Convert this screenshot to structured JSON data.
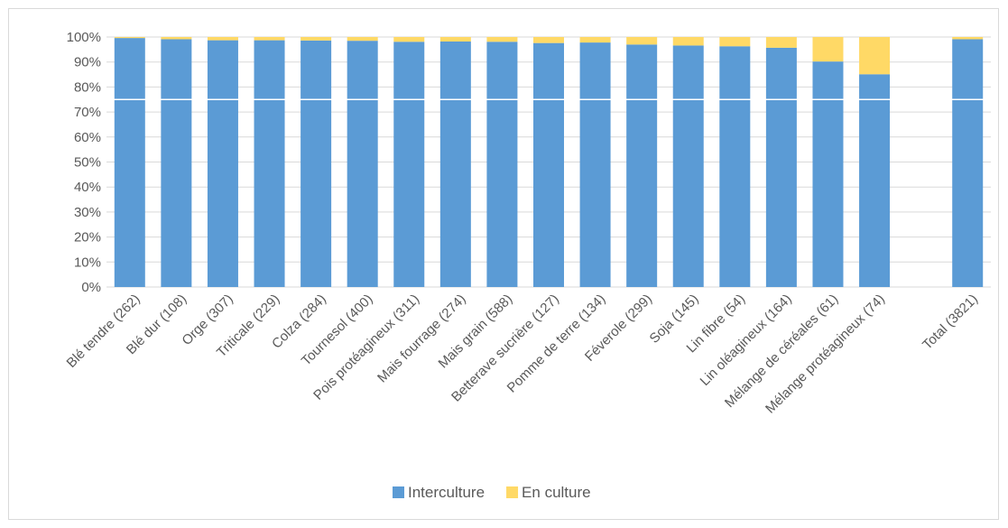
{
  "chart_data": {
    "type": "bar",
    "stacked": true,
    "percent": true,
    "title": "",
    "xlabel": "",
    "ylabel": "",
    "ylim": [
      0,
      100
    ],
    "y_ticks": [
      "0%",
      "10%",
      "20%",
      "30%",
      "40%",
      "50%",
      "60%",
      "70%",
      "80%",
      "90%",
      "100%"
    ],
    "grid": true,
    "legend_position": "bottom",
    "categories": [
      "Blé tendre (262)",
      "Blé dur (108)",
      "Orge (307)",
      "Triticale (229)",
      "Colza (284)",
      "Tournesol (400)",
      "Pois protéagineux (311)",
      "Mais fourrage (274)",
      "Mais grain (588)",
      "Betterave sucrière (127)",
      "Pomme de terre (134)",
      "Féverole (299)",
      "Soja (145)",
      "Lin fibre (54)",
      "Lin oléagineux (164)",
      "Mélange de céréales (61)",
      "Mélange protéagineux (74)",
      "",
      "Total (3821)"
    ],
    "series": [
      {
        "name": "Interculture",
        "color": "#5b9bd5",
        "values": [
          99.6,
          99.1,
          98.7,
          98.7,
          98.6,
          98.5,
          98.1,
          98.2,
          98.1,
          97.6,
          97.8,
          97.0,
          96.6,
          96.3,
          95.7,
          90.2,
          85.1,
          null,
          99.1
        ]
      },
      {
        "name": "En culture",
        "color": "#ffd966",
        "values": [
          0.4,
          0.9,
          1.3,
          1.3,
          1.4,
          1.5,
          1.9,
          1.8,
          1.9,
          2.4,
          2.2,
          3.0,
          3.4,
          3.7,
          4.3,
          9.8,
          14.9,
          null,
          0.9
        ]
      }
    ],
    "highlight_line_value": 75,
    "highlight_line_color": "#ffffff"
  }
}
